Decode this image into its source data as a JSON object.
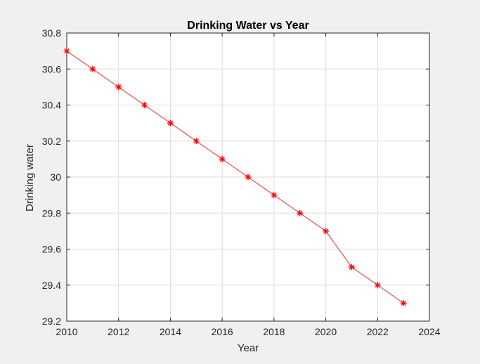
{
  "chart_data": {
    "type": "line",
    "title": "Drinking Water vs Year",
    "xlabel": "Year",
    "ylabel": "Drinking water",
    "xlim": [
      2010,
      2024
    ],
    "ylim": [
      29.2,
      30.8
    ],
    "xticks": [
      "2010",
      "2012",
      "2014",
      "2016",
      "2018",
      "2020",
      "2022",
      "2024"
    ],
    "yticks": [
      "29.2",
      "29.4",
      "29.6",
      "29.8",
      "30",
      "30.2",
      "30.4",
      "30.6",
      "30.8"
    ],
    "grid": true,
    "x": [
      2010,
      2011,
      2012,
      2013,
      2014,
      2015,
      2016,
      2017,
      2018,
      2019,
      2020,
      2021,
      2022,
      2023
    ],
    "series": [
      {
        "values": [
          30.7,
          30.6,
          30.5,
          30.4,
          30.3,
          30.2,
          30.1,
          30.0,
          29.9,
          29.8,
          29.7,
          29.5,
          29.4,
          29.3
        ],
        "color": "#ff0000",
        "line_color": "#e25a5a",
        "marker": "asterisk"
      }
    ]
  },
  "colors": {
    "figure_background": "#f0f0f0",
    "axes_background": "#ffffff",
    "grid": "#dcdcdc",
    "axis": "#262626"
  }
}
